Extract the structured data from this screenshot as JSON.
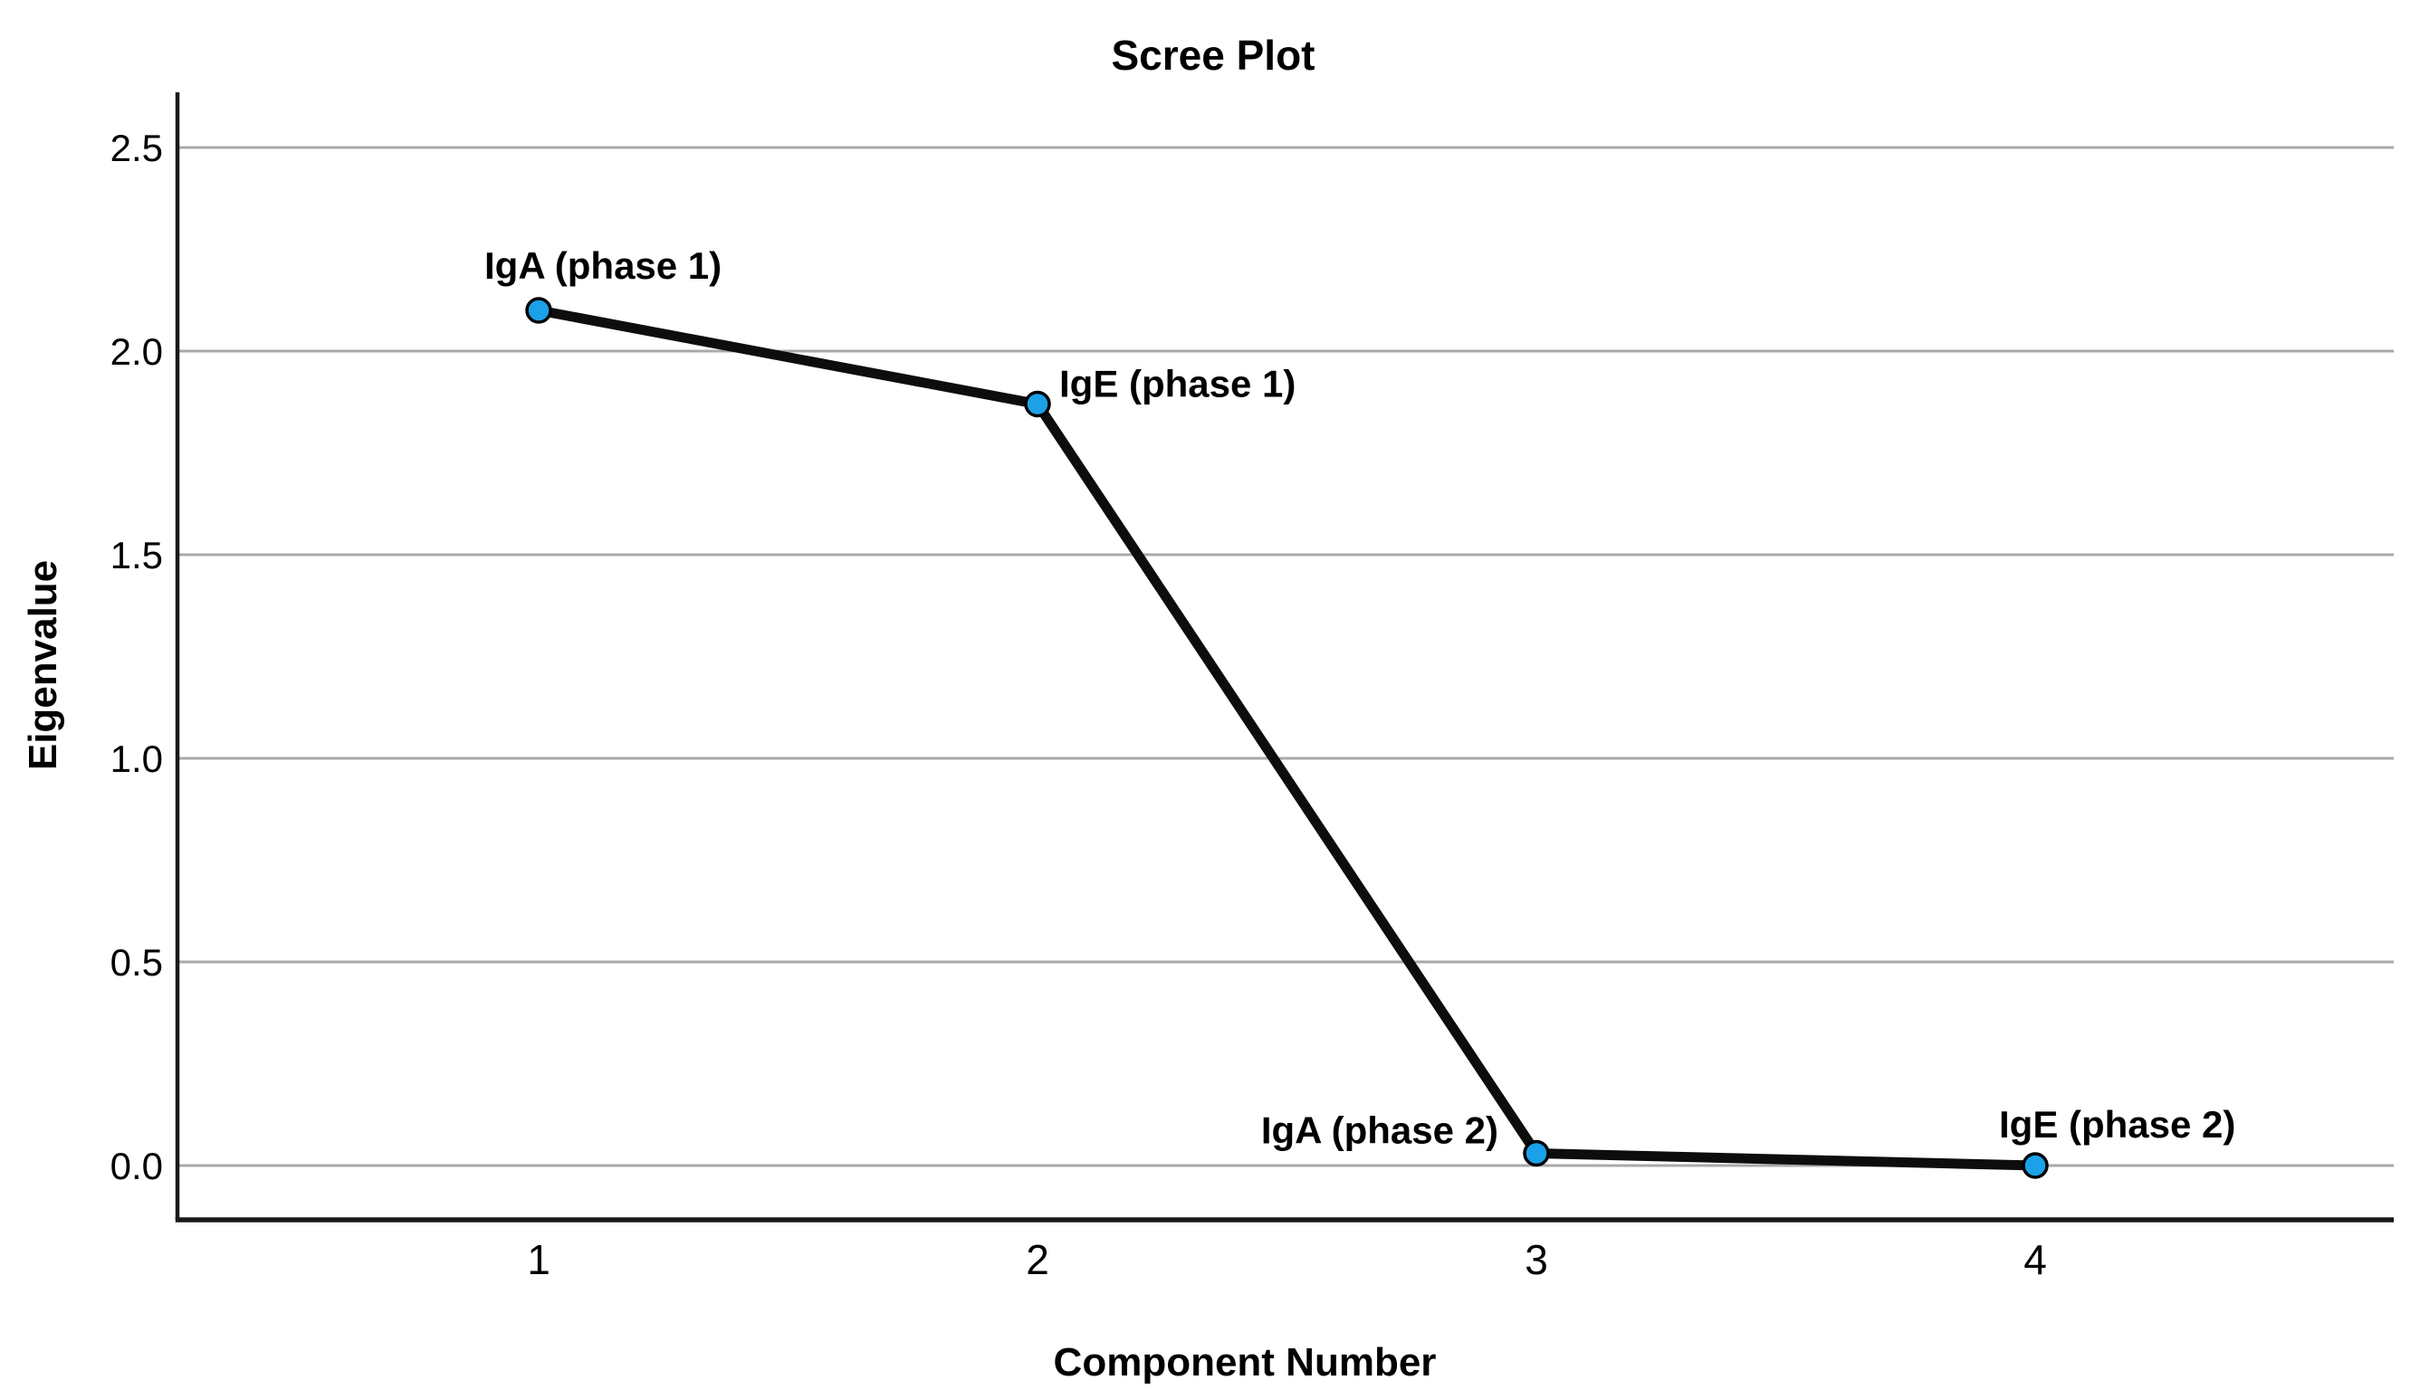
{
  "chart_data": {
    "type": "line",
    "title": "Scree Plot",
    "xlabel": "Component Number",
    "ylabel": "Eigenvalue",
    "categories": [
      "1",
      "2",
      "3",
      "4"
    ],
    "series": [
      {
        "name": "Eigenvalues",
        "values": [
          2.1,
          1.87,
          0.03,
          0.0
        ]
      }
    ],
    "point_labels": [
      "IgA (phase 1)",
      "IgE (phase 1)",
      "IgA (phase 2)",
      "IgE (phase 2)"
    ],
    "y_ticks": [
      {
        "label": "0.0",
        "value": 0.0
      },
      {
        "label": "0.5",
        "value": 0.5
      },
      {
        "label": "1.0",
        "value": 1.0
      },
      {
        "label": "1.5",
        "value": 1.5
      },
      {
        "label": "2.0",
        "value": 2.0
      },
      {
        "label": "2.5",
        "value": 2.5
      }
    ],
    "ylim": [
      0.0,
      2.75
    ],
    "grid": true,
    "legend": false,
    "colors": {
      "marker_fill": "#1BA1E8",
      "marker_stroke": "#000000",
      "line": "#0d0d0d",
      "grid": "#a9a9a9",
      "axis": "#1a1a1a",
      "text": "#000000",
      "background": "#ffffff"
    }
  }
}
